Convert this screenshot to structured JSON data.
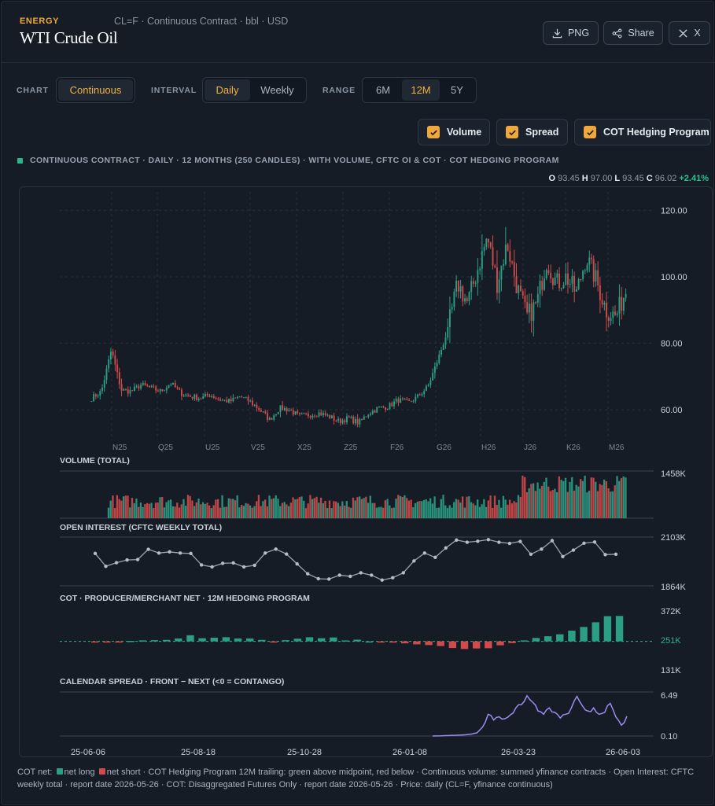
{
  "header": {
    "category": "ENERGY",
    "title": "WTI Crude Oil",
    "meta": "CL=F · Continuous Contract · bbl · USD",
    "buttons": {
      "png": "PNG",
      "share": "Share",
      "x": "X"
    }
  },
  "controls": {
    "chart_label": "CHART",
    "chart_option": "Continuous",
    "interval_label": "INTERVAL",
    "interval_options": [
      "Daily",
      "Weekly"
    ],
    "interval_selected": "Daily",
    "range_label": "RANGE",
    "range_options": [
      "6M",
      "12M",
      "5Y"
    ],
    "range_selected": "12M"
  },
  "toggles": {
    "volume": "Volume",
    "spread": "Spread",
    "cot": "COT Hedging Program"
  },
  "subtitle": "CONTINUOUS CONTRACT · DAILY · 12 MONTHS (250 CANDLES) · WITH VOLUME, CFTC OI & COT · COT HEDGING PROGRAM",
  "ohlc": {
    "o_label": "O",
    "o": "93.45",
    "h_label": "H",
    "h": "97.00",
    "l_label": "L",
    "l": "93.45",
    "c_label": "C",
    "c": "96.02",
    "change": "+2.41%"
  },
  "chart_data": [
    {
      "type": "candlestick",
      "title": "",
      "ylim": [
        56,
        122
      ],
      "y_ticks": [
        "120.00",
        "100.00",
        "80.00",
        "60.00"
      ],
      "month_labels": [
        "N25",
        "Q25",
        "U25",
        "V25",
        "X25",
        "Z25",
        "F26",
        "G26",
        "H26",
        "J26",
        "K26",
        "M26"
      ],
      "close_trend": [
        63.5,
        65.5,
        78.0,
        66.0,
        65.5,
        67.5,
        66.5,
        65.5,
        68.0,
        65.0,
        64.0,
        63.5,
        64.5,
        63.0,
        62.5,
        64.0,
        62.5,
        60.0,
        57.0,
        60.5,
        60.0,
        58.0,
        58.5,
        59.0,
        58.0,
        56.5,
        57.5,
        56.0,
        59.0,
        60.5,
        61.0,
        63.0,
        62.0,
        64.0,
        67.0,
        75.0,
        84.0,
        98.0,
        92.0,
        102.0,
        112.0,
        98.0,
        110.0,
        97.0,
        88.0,
        92.0,
        105.0,
        98.0,
        100.0,
        95.0,
        106.0,
        99.0,
        90.0,
        88.0,
        96.0
      ]
    },
    {
      "type": "bar",
      "title": "VOLUME (TOTAL)",
      "y_ticks": [
        "1458K"
      ],
      "max": 1458
    },
    {
      "type": "line",
      "title": "OPEN INTEREST (CFTC WEEKLY TOTAL)",
      "y_ticks": [
        "2103K",
        "1864K"
      ],
      "ylim": [
        1864,
        2103
      ],
      "values": [
        2028,
        1963,
        1981,
        1995,
        1997,
        2049,
        2030,
        2036,
        2030,
        2028,
        1970,
        1960,
        1978,
        1980,
        1960,
        1968,
        2030,
        2050,
        2025,
        1975,
        1925,
        1900,
        1898,
        1918,
        1912,
        1930,
        1918,
        1893,
        1905,
        1930,
        1990,
        2030,
        2008,
        2056,
        2096,
        2085,
        2090,
        2098,
        2085,
        2079,
        2089,
        2024,
        2050,
        2093,
        2012,
        2045,
        2080,
        2086,
        2022,
        2024
      ]
    },
    {
      "type": "bar",
      "title": "COT · PRODUCER/MERCHANT NET · 12M HEDGING PROGRAM",
      "y_ticks": [
        "372K",
        "251K",
        "131K"
      ],
      "ylim": [
        131,
        372
      ],
      "midpoint": 251,
      "values": [
        249,
        248,
        249,
        253,
        255,
        256,
        257,
        263,
        276,
        264,
        266,
        268,
        263,
        263,
        257,
        250,
        256,
        262,
        268,
        264,
        267,
        255,
        258,
        251,
        250,
        246,
        243,
        239,
        236,
        232,
        224,
        220,
        222,
        223,
        235,
        244,
        255,
        265,
        272,
        280,
        295,
        310,
        329,
        354,
        355
      ]
    },
    {
      "type": "line",
      "title": "CALENDAR SPREAD · FRONT − NEXT (<0 = CONTANGO)",
      "y_ticks": [
        "6.49",
        "0.10"
      ],
      "ylim": [
        0.1,
        6.49
      ],
      "values": [
        0.1,
        0.12,
        0.15,
        0.18,
        0.2,
        0.25,
        0.3,
        0.4,
        0.6,
        1.5,
        3.5,
        2.6,
        3.1,
        2.8,
        3.4,
        4.5,
        5.0,
        6.4,
        5.4,
        4.0,
        3.5,
        4.5,
        3.8,
        2.9,
        3.5,
        4.5,
        6.3,
        4.8,
        4.0,
        4.5,
        3.5,
        3.8,
        5.2,
        3.1,
        1.8,
        3.2
      ]
    }
  ],
  "x_axis_dates": [
    "25-06-06",
    "25-08-18",
    "25-10-28",
    "26-01-08",
    "26-03-23",
    "26-06-03"
  ],
  "footer": {
    "cot_net": "COT net:",
    "net_long": "net long",
    "net_short": "net short",
    "text": "· COT Hedging Program 12M trailing: green above midpoint, red below · Continuous volume: summed yfinance contracts · Open Interest: CFTC weekly total · report date 2026-05-26 · COT: Disaggregated Futures Only · report date 2026-05-26 · Price: daily (CL=F, yfinance continuous)"
  },
  "colors": {
    "up": "#2b9e86",
    "down": "#d24a4a",
    "accent": "#f0a83a",
    "spread": "#9b8cf0",
    "oi_line": "#9aa3ae",
    "grid": "#27313d",
    "bg": "#151c26"
  }
}
